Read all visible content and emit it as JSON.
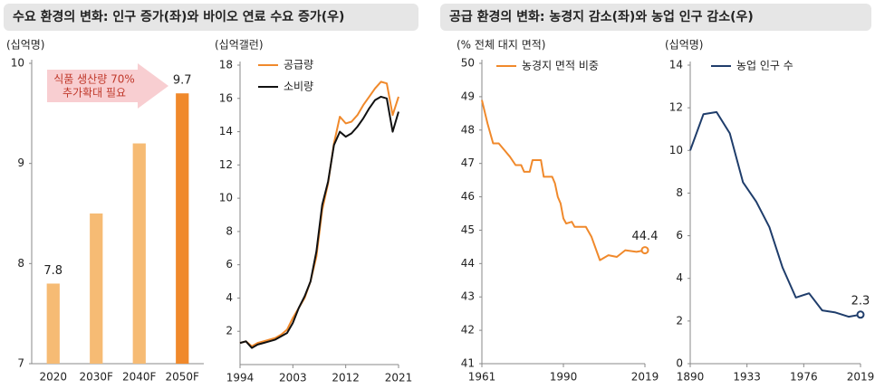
{
  "headers": [
    "수요 환경의 변화: 인구 증가(좌)와 바이오 연료 수요 증가(우)",
    "공급 환경의 변화: 농경지 감소(좌)와 농업 인구 감소(우)"
  ],
  "chart_data": [
    {
      "type": "bar",
      "ylabel": "(십억명)",
      "categories": [
        "2020",
        "2030F",
        "2040F",
        "2050F"
      ],
      "values": [
        7.8,
        8.5,
        9.2,
        9.7
      ],
      "value_labels": [
        "7.8",
        null,
        null,
        "9.7"
      ],
      "colors": [
        "#f6bb74",
        "#f6bb74",
        "#f6bb74",
        "#f0892b"
      ],
      "ylim": [
        7,
        10
      ],
      "yticks": [
        7,
        8,
        9,
        10
      ],
      "annotation": [
        "식품 생산량 70%",
        "추가확대 필요"
      ]
    },
    {
      "type": "line",
      "ylabel": "(십억갤런)",
      "x": [
        1994,
        1995,
        1996,
        1997,
        1998,
        1999,
        2000,
        2001,
        2002,
        2003,
        2004,
        2005,
        2006,
        2007,
        2008,
        2009,
        2010,
        2011,
        2012,
        2013,
        2014,
        2015,
        2016,
        2017,
        2018,
        2019,
        2020,
        2021
      ],
      "series": [
        {
          "name": "공급량",
          "color": "#f0892b",
          "values": [
            1.3,
            1.4,
            1.1,
            1.3,
            1.4,
            1.5,
            1.6,
            1.8,
            2.1,
            2.8,
            3.4,
            4.0,
            5.0,
            6.5,
            9.3,
            10.9,
            13.3,
            14.9,
            14.5,
            14.6,
            15.0,
            15.6,
            16.1,
            16.6,
            17.0,
            16.9,
            15.0,
            16.1
          ]
        },
        {
          "name": "소비량",
          "color": "#111111",
          "values": [
            1.3,
            1.4,
            1.0,
            1.2,
            1.3,
            1.4,
            1.5,
            1.7,
            1.9,
            2.5,
            3.4,
            4.1,
            5.0,
            6.8,
            9.6,
            11.0,
            13.2,
            14.0,
            13.7,
            13.9,
            14.3,
            14.8,
            15.4,
            15.9,
            16.1,
            16.0,
            14.0,
            15.2
          ]
        }
      ],
      "xlim": [
        1994,
        2021
      ],
      "xticks": [
        1994,
        2003,
        2012,
        2021
      ],
      "ylim": [
        0,
        18
      ],
      "yticks": [
        2,
        4,
        6,
        8,
        10,
        12,
        14,
        16,
        18
      ]
    },
    {
      "type": "line",
      "ylabel": "(% 전체 대지 면적)",
      "x": [
        1961,
        1963,
        1965,
        1967,
        1969,
        1971,
        1973,
        1975,
        1976,
        1978,
        1979,
        1982,
        1983,
        1986,
        1987,
        1988,
        1989,
        1990,
        1991,
        1993,
        1994,
        1998,
        2000,
        2003,
        2006,
        2009,
        2012,
        2016,
        2019
      ],
      "series": [
        {
          "name": "농경지 면적 비중",
          "color": "#f0892b",
          "values": [
            48.9,
            48.2,
            47.6,
            47.6,
            47.4,
            47.2,
            46.95,
            46.95,
            46.75,
            46.75,
            47.1,
            47.1,
            46.6,
            46.6,
            46.4,
            46.0,
            45.8,
            45.35,
            45.2,
            45.25,
            45.1,
            45.1,
            44.8,
            44.1,
            44.25,
            44.2,
            44.4,
            44.35,
            44.4
          ],
          "value_labels": [
            null,
            null,
            null,
            null,
            null,
            null,
            null,
            null,
            null,
            null,
            null,
            null,
            null,
            null,
            null,
            null,
            null,
            null,
            null,
            null,
            null,
            null,
            null,
            null,
            null,
            null,
            null,
            null,
            "44.4"
          ]
        }
      ],
      "xlim": [
        1961,
        2019
      ],
      "xticks": [
        1961,
        1990,
        2019
      ],
      "ylim": [
        41,
        50
      ],
      "yticks": [
        41,
        42,
        43,
        44,
        45,
        46,
        47,
        48,
        49,
        50
      ]
    },
    {
      "type": "line",
      "ylabel": "(십억명)",
      "x": [
        1890,
        1900,
        1910,
        1920,
        1930,
        1940,
        1950,
        1960,
        1970,
        1980,
        1990,
        2000,
        2010,
        2019
      ],
      "series": [
        {
          "name": "농업 인구 수",
          "color": "#1f3d6b",
          "values": [
            10.0,
            11.7,
            11.8,
            10.8,
            8.5,
            7.6,
            6.4,
            4.5,
            3.1,
            3.3,
            2.5,
            2.4,
            2.2,
            2.3
          ],
          "value_labels": [
            null,
            null,
            null,
            null,
            null,
            null,
            null,
            null,
            null,
            null,
            null,
            null,
            null,
            "2.3"
          ]
        }
      ],
      "xlim": [
        1890,
        2019
      ],
      "xticks": [
        1890,
        1933,
        1976,
        2019
      ],
      "ylim": [
        0,
        14
      ],
      "yticks": [
        0,
        2,
        4,
        6,
        8,
        10,
        12,
        14
      ]
    }
  ]
}
